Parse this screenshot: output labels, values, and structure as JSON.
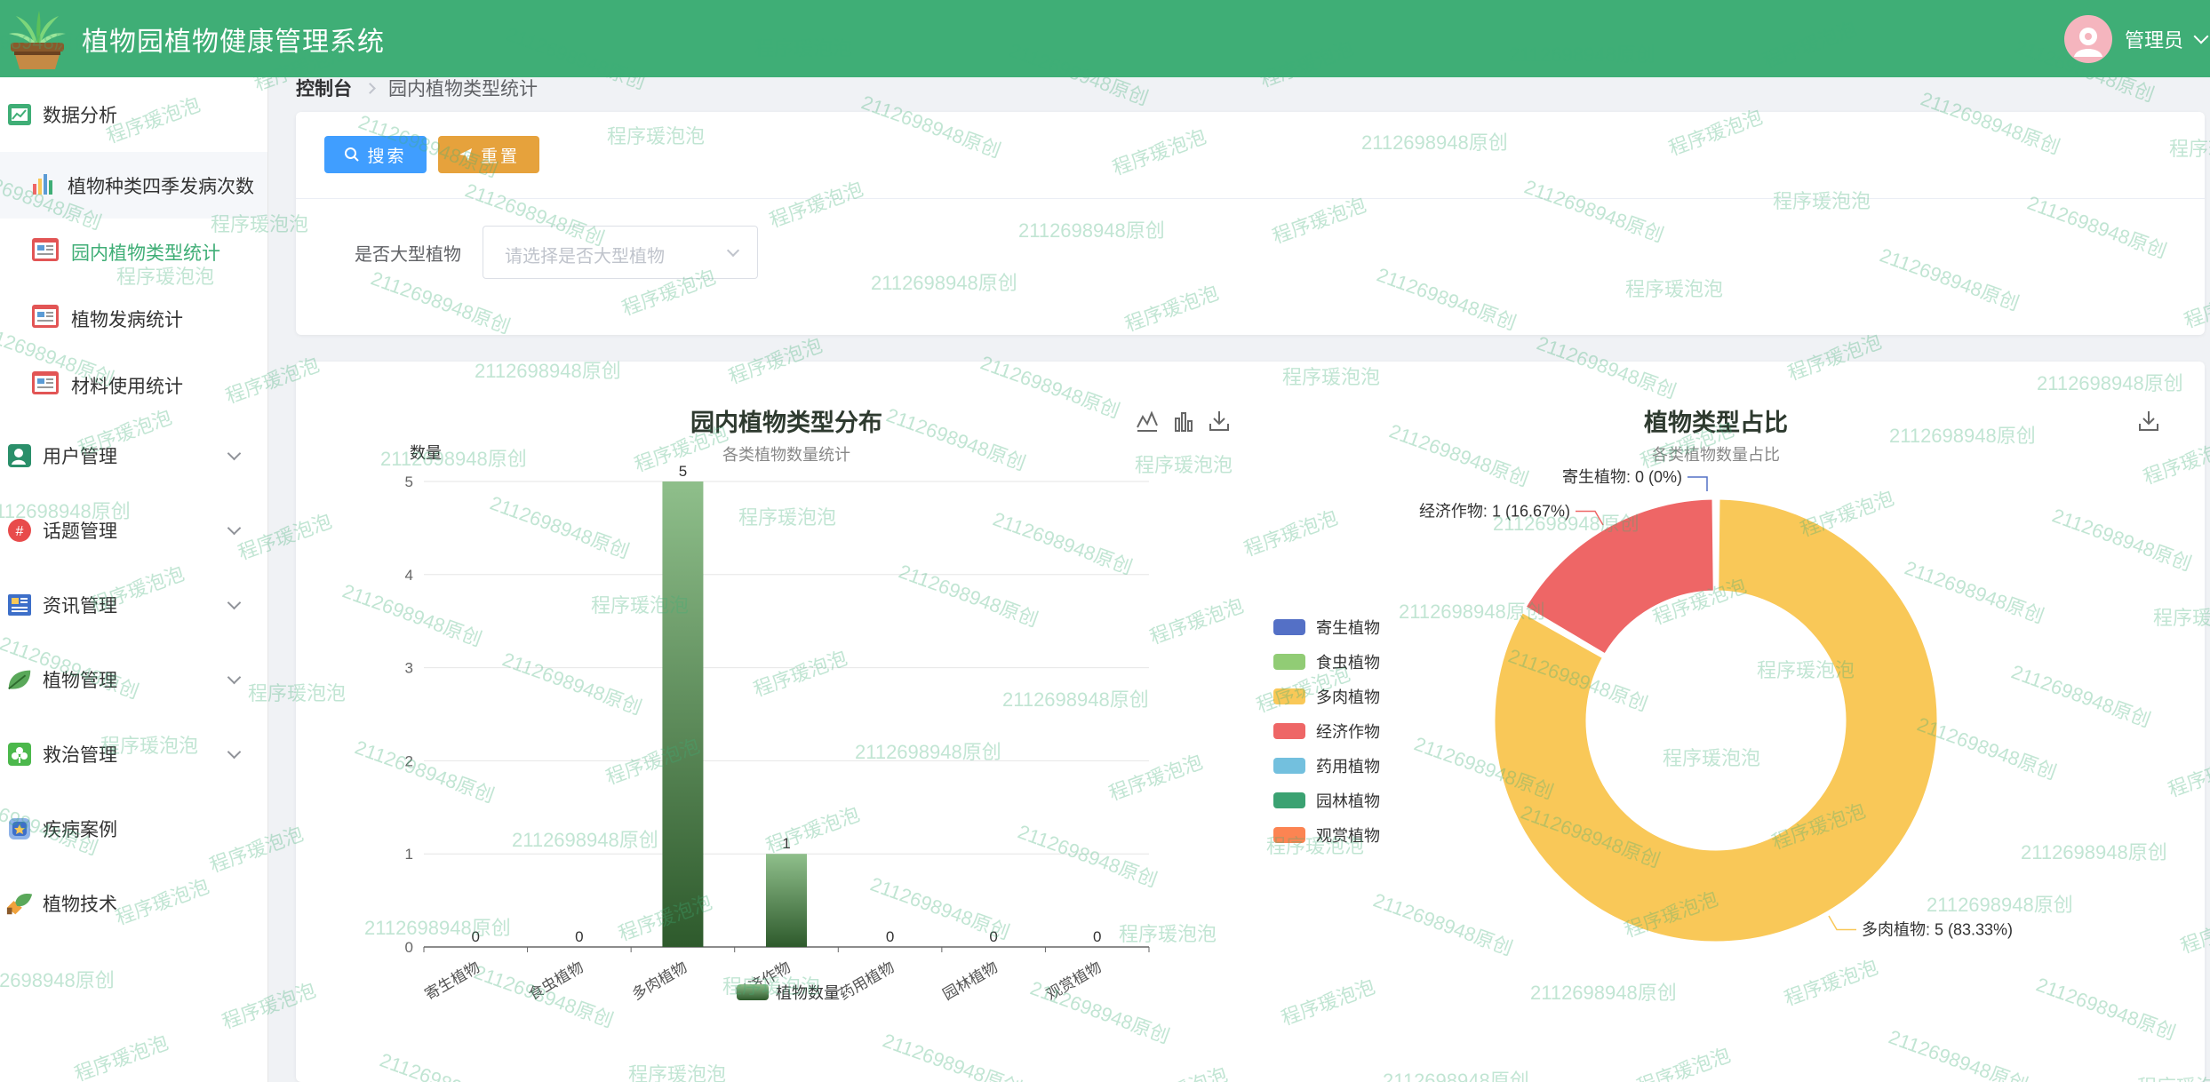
{
  "header": {
    "title": "植物园植物健康管理系统",
    "user_name": "管理员"
  },
  "sidebar": {
    "items": [
      {
        "label": "数据分析",
        "icon": "data-analysis-icon",
        "children": [
          {
            "label": "植物种类四季发病次数",
            "icon": "bar-report-icon"
          },
          {
            "label": "园内植物类型统计",
            "icon": "report-icon"
          },
          {
            "label": "植物发病统计",
            "icon": "report-icon"
          },
          {
            "label": "材料使用统计",
            "icon": "report-icon"
          }
        ]
      },
      {
        "label": "用户管理",
        "icon": "user-icon"
      },
      {
        "label": "话题管理",
        "icon": "topic-icon"
      },
      {
        "label": "资讯管理",
        "icon": "news-icon"
      },
      {
        "label": "植物管理",
        "icon": "leaf-icon"
      },
      {
        "label": "救治管理",
        "icon": "treatment-icon"
      },
      {
        "label": "疾病案例",
        "icon": "case-icon"
      },
      {
        "label": "植物技术",
        "icon": "tech-icon"
      }
    ]
  },
  "breadcrumb": {
    "home": "控制台",
    "current": "园内植物类型统计"
  },
  "search": {
    "search_button": "搜索",
    "reset_button": "重置",
    "filter_label": "是否大型植物",
    "filter_placeholder": "请选择是否大型植物"
  },
  "colors": {
    "primary": "#3fae76",
    "search_button": "#409eff",
    "reset_button": "#e6a23c"
  },
  "chart_data": [
    {
      "type": "bar",
      "title": "园内植物类型分布",
      "subtitle": "各类植物数量统计",
      "ylabel": "数量",
      "xlabel": "",
      "categories": [
        "寄生植物",
        "食虫植物",
        "多肉植物",
        "经济作物",
        "药用植物",
        "园林植物",
        "观赏植物"
      ],
      "series": [
        {
          "name": "植物数量",
          "values": [
            0,
            0,
            5,
            1,
            0,
            0,
            0
          ]
        }
      ],
      "yticks": [
        0,
        1,
        2,
        3,
        4,
        5
      ],
      "ylim": [
        0,
        5
      ],
      "grid": true,
      "legend": "bottom",
      "colors": {
        "bar_top": "#8fbf8b",
        "bar_bottom": "#2e5a2c"
      }
    },
    {
      "type": "pie",
      "title": "植物类型占比",
      "subtitle": "各类植物数量占比",
      "legend": "left",
      "slices": [
        {
          "name": "寄生植物",
          "value": 0,
          "label": "寄生植物: 0 (0%)",
          "color": "#5470c6"
        },
        {
          "name": "食虫植物",
          "value": 0,
          "label": "",
          "color": "#91cc75"
        },
        {
          "name": "多肉植物",
          "value": 5,
          "label": "多肉植物: 5 (83.33%)",
          "color": "#f9c858"
        },
        {
          "name": "经济作物",
          "value": 1,
          "label": "经济作物: 1 (16.67%)",
          "color": "#ee6666"
        },
        {
          "name": "药用植物",
          "value": 0,
          "label": "",
          "color": "#73c0de"
        },
        {
          "name": "园林植物",
          "value": 0,
          "label": "",
          "color": "#3ba272"
        },
        {
          "name": "观赏植物",
          "value": 0,
          "label": "",
          "color": "#fc8452"
        }
      ]
    }
  ],
  "watermark": {
    "texts": [
      "2112698948原创",
      "程序瑗泡泡"
    ]
  }
}
